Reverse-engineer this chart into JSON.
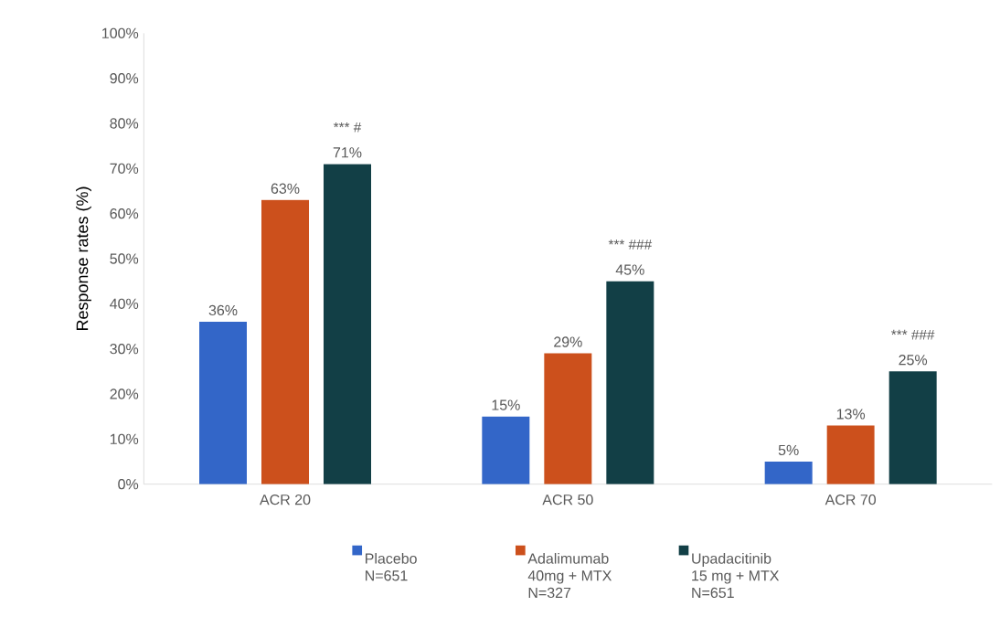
{
  "chart_data": {
    "type": "bar",
    "ylabel": "Response rates (%)",
    "categories": [
      "ACR 20",
      "ACR 50",
      "ACR 70"
    ],
    "series": [
      {
        "name": "Placebo N=651",
        "color": "#3366c8",
        "values": [
          36,
          15,
          5
        ],
        "value_labels": [
          "36%",
          "15%",
          "5%"
        ]
      },
      {
        "name": "Adalimumab 40mg + MTX N=327",
        "color": "#cc501c",
        "values": [
          63,
          29,
          13
        ],
        "value_labels": [
          "63%",
          "29%",
          "13%"
        ]
      },
      {
        "name": "Upadacitinib 15 mg + MTX N=651",
        "color": "#123f46",
        "values": [
          71,
          45,
          25
        ],
        "value_labels": [
          "71%",
          "45%",
          "25%"
        ]
      }
    ],
    "ylim": [
      0,
      100
    ],
    "yticks": [
      {
        "value": 0,
        "label": "0%"
      },
      {
        "value": 10,
        "label": "10%"
      },
      {
        "value": 20,
        "label": "20%"
      },
      {
        "value": 30,
        "label": "30%"
      },
      {
        "value": 40,
        "label": "40%"
      },
      {
        "value": 50,
        "label": "50%"
      },
      {
        "value": 60,
        "label": "60%"
      },
      {
        "value": 70,
        "label": "70%"
      },
      {
        "value": 80,
        "label": "80%"
      },
      {
        "value": 90,
        "label": "90%"
      },
      {
        "value": 100,
        "label": "100%"
      }
    ],
    "annotations": [
      "*** #",
      "*** ###",
      "*** ###"
    ],
    "legend": "bottom",
    "grid": false
  }
}
